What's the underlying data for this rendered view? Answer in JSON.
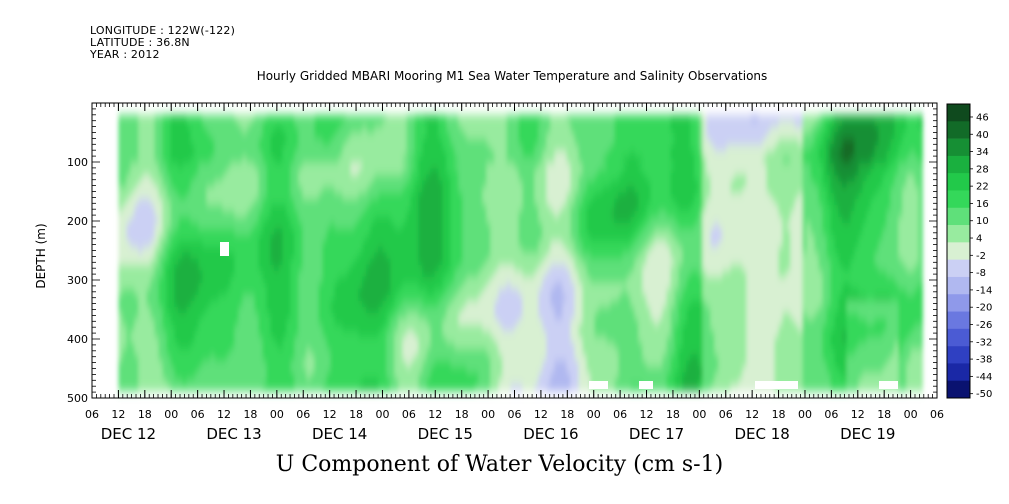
{
  "header": {
    "longitude": "LONGITUDE : 122W(-122)",
    "latitude": "LATITUDE : 36.8N",
    "year": "YEAR : 2012"
  },
  "chart_data": {
    "type": "heatmap",
    "title": "Hourly Gridded MBARI Mooring M1 Sea Water Temperature and Salinity Observations",
    "xlabel": "U Component of Water Velocity (cm s-1)",
    "ylabel": "DEPTH (m)",
    "ylim": [
      500,
      0
    ],
    "yticks": [
      100,
      200,
      300,
      400,
      500
    ],
    "xticks_hours": [
      "06",
      "12",
      "18",
      "00",
      "06",
      "12",
      "18",
      "00",
      "06",
      "12",
      "18",
      "00",
      "06",
      "12",
      "18",
      "00",
      "06",
      "12",
      "18",
      "00",
      "06",
      "12",
      "18",
      "00",
      "06",
      "12",
      "18",
      "00",
      "06",
      "12",
      "18",
      "00",
      "06"
    ],
    "day_labels": [
      "DEC 12",
      "DEC 13",
      "DEC 14",
      "DEC 15",
      "DEC 16",
      "DEC 17",
      "DEC 18",
      "DEC 19"
    ],
    "colorbar": {
      "labels": [
        "46",
        "40",
        "34",
        "28",
        "22",
        "16",
        "10",
        "4",
        "-2",
        "-8",
        "-14",
        "-20",
        "-26",
        "-32",
        "-38",
        "-44",
        "-50"
      ],
      "colors": [
        "#0f4a1e",
        "#126b28",
        "#168f34",
        "#1ab03f",
        "#22c94a",
        "#34d85a",
        "#5fe07a",
        "#98eb9f",
        "#d8f0d2",
        "#cbd0f4",
        "#b0b8f0",
        "#8f99ea",
        "#6a78e0",
        "#4b5bd4",
        "#2f40c2",
        "#1a28a6",
        "#0a1270"
      ]
    },
    "data_range": {
      "x_hours": [
        12,
        194
      ],
      "depth_m": [
        20,
        485
      ]
    },
    "value_range": [
      -50,
      46
    ]
  }
}
